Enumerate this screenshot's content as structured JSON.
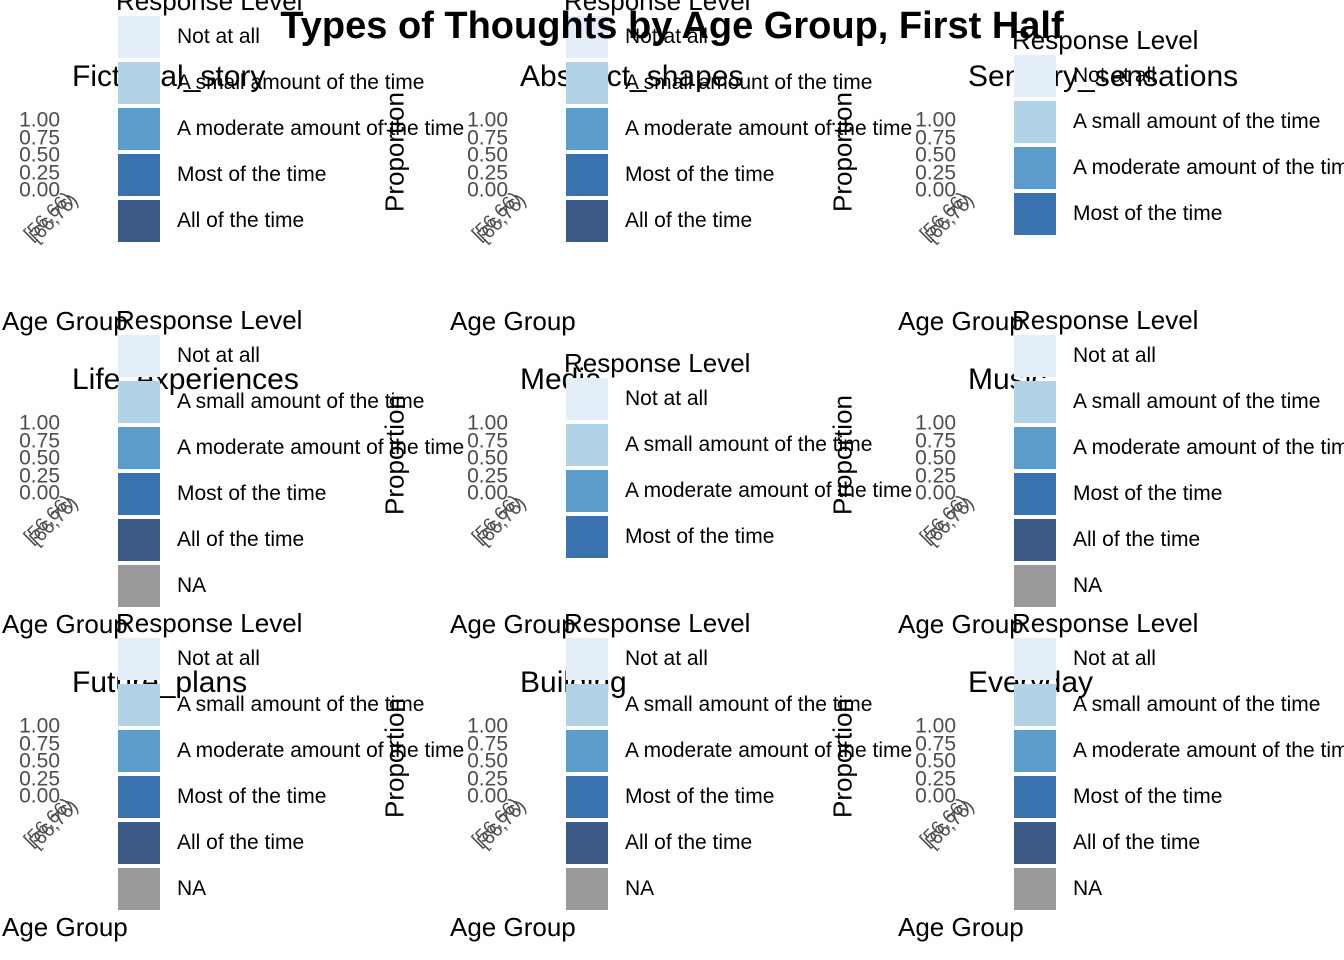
{
  "title": "Types of Thoughts by Age Group, First Half",
  "colors": {
    "Not at all": "#e3eef9",
    "A small amount of the time": "#b2d2e8",
    "A moderate amount of the time": "#5d9dcb",
    "Most of the time": "#3a72b0",
    "All of the time": "#3b5a87",
    "NA": "#999999"
  },
  "chart_data": [
    {
      "type": "bar",
      "title": "Fictional_story",
      "xlabel": "Age Group",
      "ylabel": "Proportion",
      "categories": [
        "[56,66)",
        "[66,76)"
      ],
      "yticks": [
        "1.00",
        "0.75",
        "0.50",
        "0.25",
        "0.00"
      ],
      "ylim": [
        0,
        1
      ],
      "legend_title": "Response Level",
      "legend": [
        "Not at all",
        "A small amount of the time",
        "A moderate amount of the time",
        "Most of the time",
        "All of the time"
      ]
    },
    {
      "type": "bar",
      "title": "Abstract_shapes",
      "xlabel": "Age Group",
      "ylabel": "Proportion",
      "categories": [
        "[56,66)",
        "[66,76)"
      ],
      "yticks": [
        "1.00",
        "0.75",
        "0.50",
        "0.25",
        "0.00"
      ],
      "ylim": [
        0,
        1
      ],
      "legend_title": "Response Level",
      "legend": [
        "Not at all",
        "A small amount of the time",
        "A moderate amount of the time",
        "Most of the time",
        "All of the time"
      ]
    },
    {
      "type": "bar",
      "title": "Sensory_sensations",
      "xlabel": "Age Group",
      "ylabel": "Proportion",
      "categories": [
        "[56,66)",
        "[66,76)"
      ],
      "yticks": [
        "1.00",
        "0.75",
        "0.50",
        "0.25",
        "0.00"
      ],
      "ylim": [
        0,
        1
      ],
      "legend_title": "Response Level",
      "legend": [
        "Not at all",
        "A small amount of the time",
        "A moderate amount of the time",
        "Most of the time"
      ]
    },
    {
      "type": "bar",
      "title": "Life_experiences",
      "xlabel": "Age Group",
      "ylabel": "Proportion",
      "categories": [
        "[56,66)",
        "[66,76)"
      ],
      "yticks": [
        "1.00",
        "0.75",
        "0.50",
        "0.25",
        "0.00"
      ],
      "ylim": [
        0,
        1
      ],
      "legend_title": "Response Level",
      "legend": [
        "Not at all",
        "A small amount of the time",
        "A moderate amount of the time",
        "Most of the time",
        "All of the time",
        "NA"
      ]
    },
    {
      "type": "bar",
      "title": "Media",
      "xlabel": "Age Group",
      "ylabel": "Proportion",
      "categories": [
        "[56,66)",
        "[66,76)"
      ],
      "yticks": [
        "1.00",
        "0.75",
        "0.50",
        "0.25",
        "0.00"
      ],
      "ylim": [
        0,
        1
      ],
      "legend_title": "Response Level",
      "legend": [
        "Not at all",
        "A small amount of the time",
        "A moderate amount of the time",
        "Most of the time"
      ]
    },
    {
      "type": "bar",
      "title": "Music",
      "xlabel": "Age Group",
      "ylabel": "Proportion",
      "categories": [
        "[56,66)",
        "[66,76)"
      ],
      "yticks": [
        "1.00",
        "0.75",
        "0.50",
        "0.25",
        "0.00"
      ],
      "ylim": [
        0,
        1
      ],
      "legend_title": "Response Level",
      "legend": [
        "Not at all",
        "A small amount of the time",
        "A moderate amount of the time",
        "Most of the time",
        "All of the time",
        "NA"
      ]
    },
    {
      "type": "bar",
      "title": "Future_plans",
      "xlabel": "Age Group",
      "ylabel": "Proportion",
      "categories": [
        "[56,66)",
        "[66,76)"
      ],
      "yticks": [
        "1.00",
        "0.75",
        "0.50",
        "0.25",
        "0.00"
      ],
      "ylim": [
        0,
        1
      ],
      "legend_title": "Response Level",
      "legend": [
        "Not at all",
        "A small amount of the time",
        "A moderate amount of the time",
        "Most of the time",
        "All of the time",
        "NA"
      ]
    },
    {
      "type": "bar",
      "title": "Building",
      "xlabel": "Age Group",
      "ylabel": "Proportion",
      "categories": [
        "[56,66)",
        "[66,76)"
      ],
      "yticks": [
        "1.00",
        "0.75",
        "0.50",
        "0.25",
        "0.00"
      ],
      "ylim": [
        0,
        1
      ],
      "legend_title": "Response Level",
      "legend": [
        "Not at all",
        "A small amount of the time",
        "A moderate amount of the time",
        "Most of the time",
        "All of the time",
        "NA"
      ]
    },
    {
      "type": "bar",
      "title": "Everyday",
      "xlabel": "Age Group",
      "ylabel": "Proportion",
      "categories": [
        "[56,66)",
        "[66,76)"
      ],
      "yticks": [
        "1.00",
        "0.75",
        "0.50",
        "0.25",
        "0.00"
      ],
      "ylim": [
        0,
        1
      ],
      "legend_title": "Response Level",
      "legend": [
        "Not at all",
        "A small amount of the time",
        "A moderate amount of the time",
        "Most of the time",
        "All of the time",
        "NA"
      ]
    }
  ]
}
